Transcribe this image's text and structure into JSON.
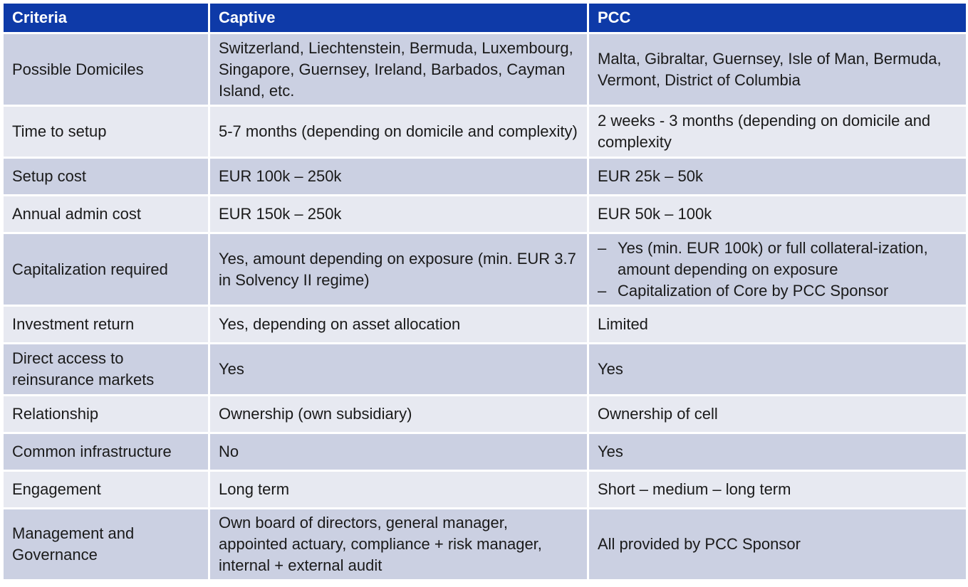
{
  "headers": [
    "Criteria",
    "Captive",
    "PCC"
  ],
  "rows": [
    {
      "criteria": "Possible Domiciles",
      "captive": "Switzerland, Liechtenstein, Bermuda, Luxembourg, Singapore, Guernsey, Ireland, Barbados, Cayman Island, etc.",
      "pcc": "Malta, Gibraltar, Guernsey, Isle of Man, Bermuda, Vermont, District of Columbia"
    },
    {
      "criteria": "Time to setup",
      "captive": "5-7 months (depending on domicile and complexity)",
      "pcc": "2 weeks - 3 months (depending on domicile and complexity"
    },
    {
      "criteria": "Setup cost",
      "captive": "EUR 100k – 250k",
      "pcc": "EUR 25k – 50k"
    },
    {
      "criteria": "Annual admin cost",
      "captive": "EUR 150k – 250k",
      "pcc": "EUR 50k – 100k"
    },
    {
      "criteria": "Capitalization required",
      "captive": "Yes, amount depending on exposure (min. EUR 3.7 in Solvency II regime)",
      "pcc_bullets": [
        "Yes (min. EUR 100k) or full collateral-ization, amount depending on exposure",
        "Capitalization of Core by PCC Sponsor"
      ],
      "bullet_glyph": "–"
    },
    {
      "criteria": "Investment return",
      "captive": "Yes, depending on asset allocation",
      "pcc": "Limited"
    },
    {
      "criteria": "Direct access to reinsurance markets",
      "captive": "Yes",
      "pcc": "Yes"
    },
    {
      "criteria": "Relationship",
      "captive": "Ownership (own subsidiary)",
      "pcc": "Ownership of cell"
    },
    {
      "criteria": "Common infrastructure",
      "captive": "No",
      "pcc": "Yes"
    },
    {
      "criteria": "Engagement",
      "captive": "Long term",
      "pcc": "Short – medium – long term"
    },
    {
      "criteria": "Management and Governance",
      "captive": "Own board of directors, general manager, appointed actuary, compliance + risk manager, internal + external audit",
      "pcc": "All provided by PCC Sponsor"
    }
  ],
  "colors": {
    "header": "#0e3aa8",
    "row_dark": "#cbd0e2",
    "row_light": "#e7e9f1",
    "border": "#ffffff"
  }
}
